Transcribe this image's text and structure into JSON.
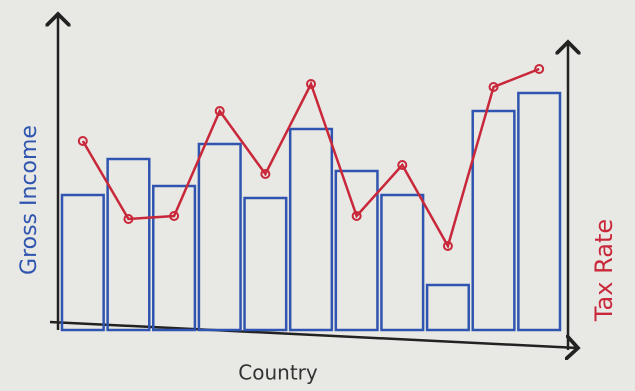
{
  "chart_data": {
    "type": "bar",
    "x_label": "Country",
    "y_label": "Gross Income",
    "y2_label": "Tax Rate",
    "categories": [
      null,
      null,
      null,
      null,
      null,
      null,
      null,
      null,
      null,
      null,
      null
    ],
    "series": [
      {
        "type": "bar",
        "color": "#2f55b0",
        "values": [
          45,
          57,
          48,
          62,
          44,
          67,
          53,
          45,
          15,
          73,
          79
        ]
      },
      {
        "type": "line",
        "axis": "y2",
        "color": "#c8283a",
        "values": [
          63,
          37,
          38,
          73,
          52,
          82,
          38,
          55,
          28,
          81,
          87
        ]
      }
    ],
    "ylim": [
      0,
      100
    ],
    "y2lim": [
      0,
      100
    ]
  }
}
